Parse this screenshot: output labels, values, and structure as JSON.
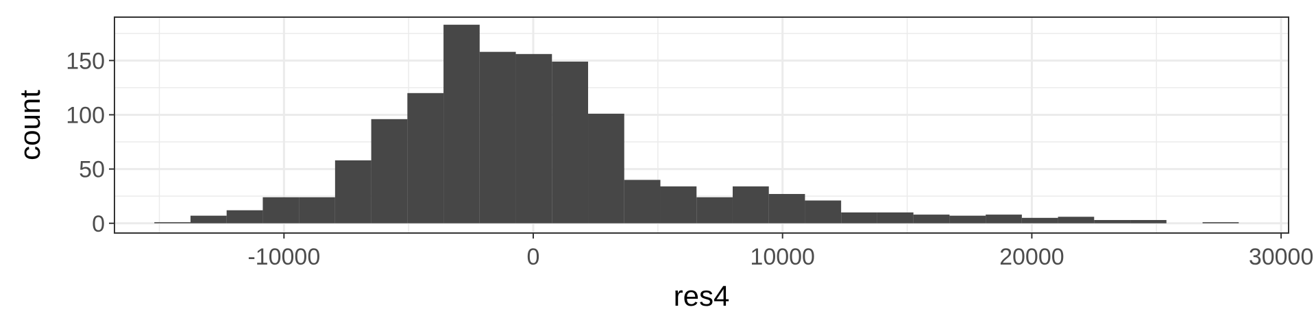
{
  "chart_data": {
    "type": "bar",
    "subtype": "histogram",
    "xlabel": "res4",
    "ylabel": "count",
    "xlim": [
      -16800,
      30300
    ],
    "ylim": [
      -9,
      190
    ],
    "xticks": [
      -10000,
      0,
      10000,
      20000,
      30000
    ],
    "xtick_labels": [
      "-10000",
      "0",
      "10000",
      "20000",
      "30000"
    ],
    "yticks": [
      0,
      50,
      100,
      150
    ],
    "ytick_labels": [
      "0",
      "50",
      "100",
      "150"
    ],
    "bin_width": 1450,
    "bin_start": -15200,
    "counts": [
      1,
      7,
      12,
      24,
      24,
      58,
      96,
      120,
      183,
      158,
      156,
      149,
      101,
      40,
      34,
      24,
      34,
      27,
      21,
      10,
      10,
      8,
      7,
      8,
      5,
      6,
      3,
      3,
      0,
      1
    ],
    "grid": true,
    "bar_color": "#474747",
    "grid_color": "#ebebeb",
    "theme": "bw"
  }
}
